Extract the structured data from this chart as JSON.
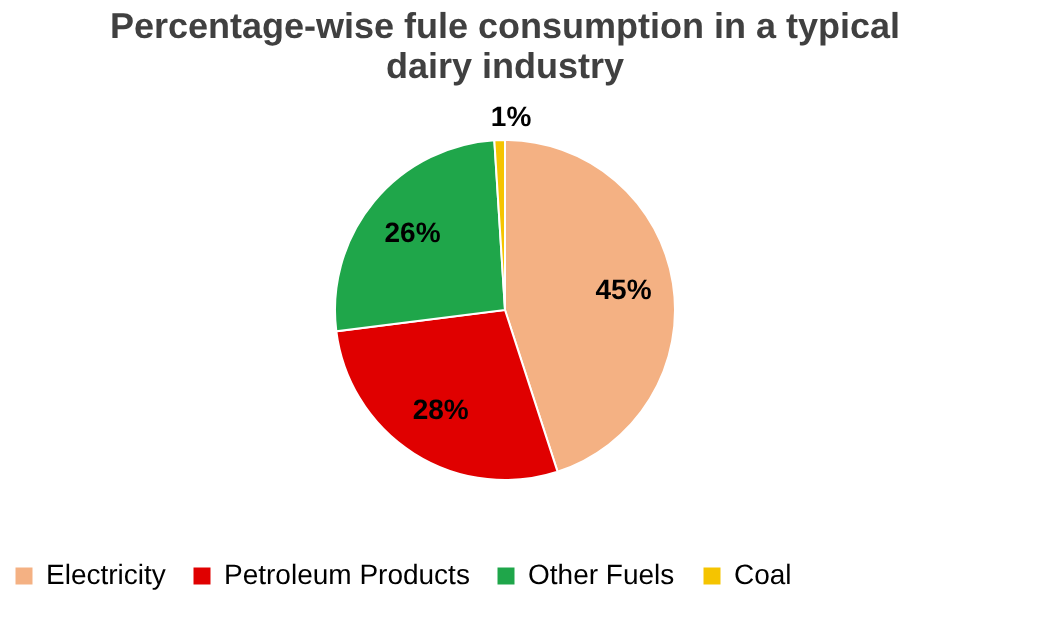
{
  "chart_data": {
    "type": "pie",
    "title": "Percentage-wise fule consumption in a typical dairy industry",
    "categories": [
      "Electricity",
      "Petroleum Products",
      "Other Fuels",
      "Coal"
    ],
    "values": [
      45,
      28,
      26,
      1
    ],
    "colors": [
      "#f4b183",
      "#e00000",
      "#1fa64a",
      "#f5c400"
    ],
    "value_labels": [
      "45%",
      "28%",
      "26%",
      "1%"
    ],
    "legend": "bottom"
  }
}
